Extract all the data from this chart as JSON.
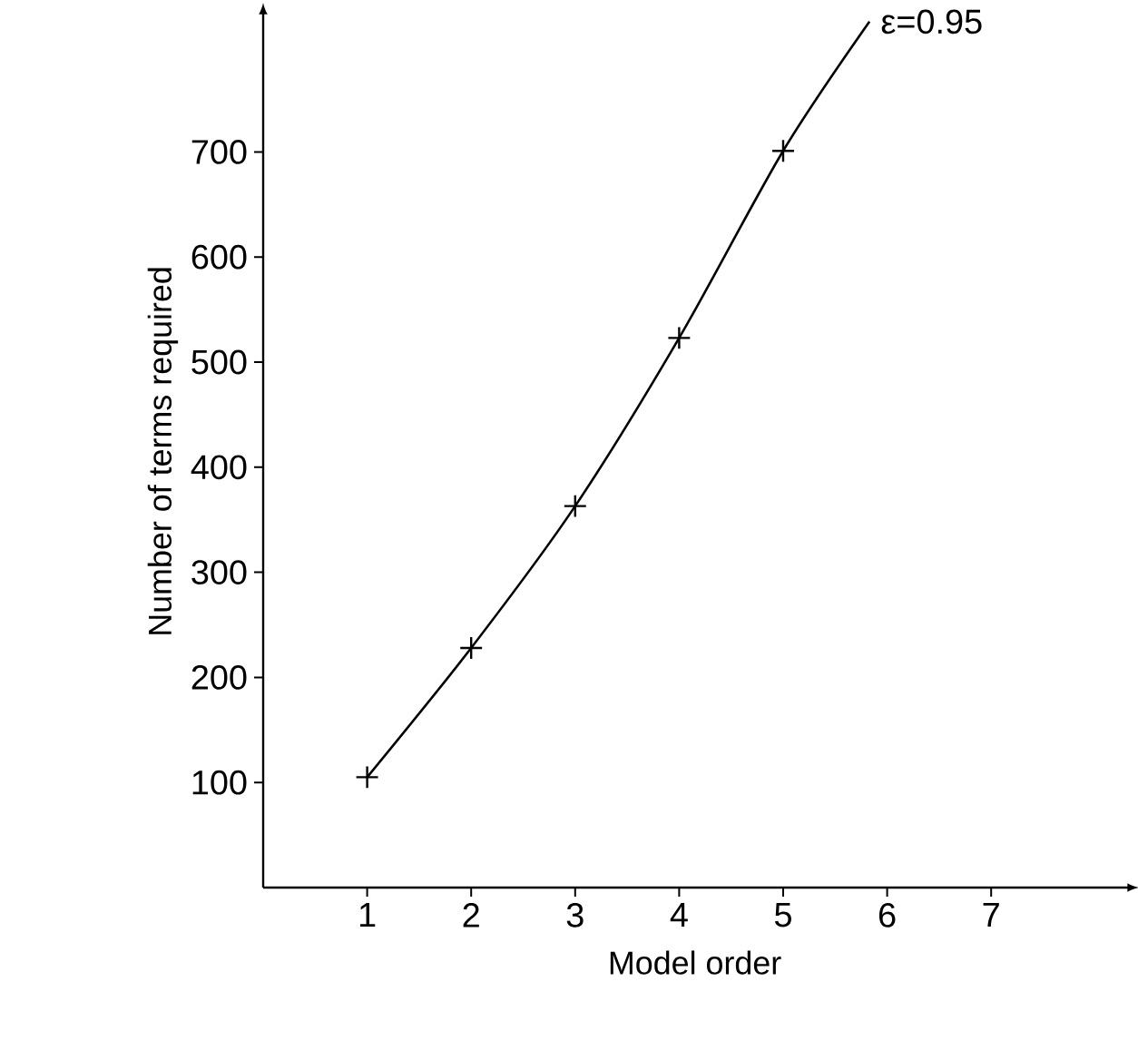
{
  "chart_data": {
    "type": "line",
    "xlabel": "Model order",
    "ylabel": "Number of terms required",
    "xlim": [
      0,
      8.3
    ],
    "ylim": [
      0,
      830
    ],
    "xticks": [
      1,
      2,
      3,
      4,
      5,
      6,
      7
    ],
    "yticks": [
      100,
      200,
      300,
      400,
      500,
      600,
      700
    ],
    "line_style": "solid",
    "series": [
      {
        "type": "line",
        "color": "#000000",
        "marker": "none",
        "x": [
          1,
          2,
          3,
          4,
          5,
          5.83
        ],
        "values": [
          105,
          228,
          363,
          523,
          701,
          824
        ]
      },
      {
        "type": "scatter",
        "color": "#000000",
        "marker": "cross",
        "x": [
          1,
          2,
          3,
          4,
          5
        ],
        "values": [
          105,
          228,
          363,
          523,
          701
        ]
      }
    ],
    "annotations": [
      {
        "text": "ε=0.95",
        "x": 5.83,
        "y": 824
      }
    ]
  }
}
